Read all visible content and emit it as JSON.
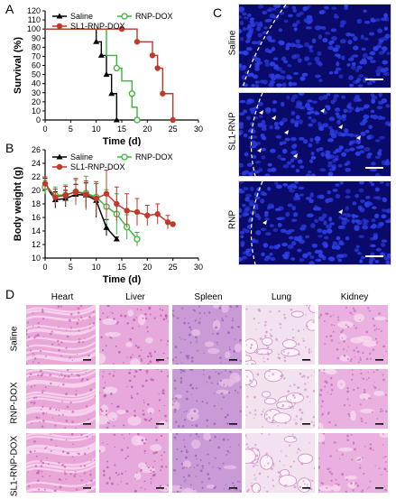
{
  "panels": {
    "A": "A",
    "B": "B",
    "C": "C",
    "D": "D"
  },
  "colors": {
    "saline": "#000000",
    "rnp_dox": "#3cb53c",
    "sl1_rnp_dox": "#c0392b",
    "micro_bg": "#0a0a6a",
    "nuclei": "#2d3fe6"
  },
  "chart_data": [
    {
      "type": "line",
      "id": "survival",
      "xlabel": "Time (d)",
      "ylabel": "Survival (%)",
      "xlim": [
        0,
        30
      ],
      "ylim": [
        0,
        120
      ],
      "xticks": [
        0,
        5,
        10,
        15,
        20,
        25,
        30
      ],
      "yticks": [
        0,
        10,
        20,
        30,
        40,
        50,
        60,
        70,
        80,
        90,
        100,
        110,
        120
      ],
      "legend": [
        {
          "name": "Saline",
          "marker": "triangle",
          "color": "#000000"
        },
        {
          "name": "RNP-DOX",
          "marker": "open-circle",
          "color": "#3cb53c"
        },
        {
          "name": "SL1-RNP-DOX",
          "marker": "circle",
          "color": "#c0392b"
        }
      ],
      "series": [
        {
          "name": "Saline",
          "steps": [
            [
              0,
              100
            ],
            [
              10,
              100
            ],
            [
              10,
              86
            ],
            [
              11,
              86
            ],
            [
              11,
              71
            ],
            [
              12,
              71
            ],
            [
              12,
              50
            ],
            [
              13,
              50
            ],
            [
              13,
              29
            ],
            [
              14,
              29
            ],
            [
              14,
              0
            ]
          ]
        },
        {
          "name": "RNP-DOX",
          "steps": [
            [
              0,
              100
            ],
            [
              12,
              100
            ],
            [
              12,
              71
            ],
            [
              14,
              71
            ],
            [
              14,
              57
            ],
            [
              15,
              57
            ],
            [
              15,
              43
            ],
            [
              17,
              43
            ],
            [
              17,
              29
            ],
            [
              17,
              29
            ],
            [
              17,
              14
            ],
            [
              18,
              14
            ],
            [
              18,
              0
            ]
          ]
        },
        {
          "name": "SL1-RNP-DOX",
          "steps": [
            [
              0,
              100
            ],
            [
              15,
              100
            ],
            [
              15,
              100
            ],
            [
              18,
              100
            ],
            [
              18,
              86
            ],
            [
              21,
              86
            ],
            [
              21,
              71
            ],
            [
              22,
              71
            ],
            [
              22,
              57
            ],
            [
              23,
              57
            ],
            [
              23,
              29
            ],
            [
              25,
              29
            ],
            [
              25,
              0
            ]
          ]
        }
      ],
      "markers": [
        {
          "series": "Saline",
          "points": [
            [
              10,
              86
            ],
            [
              11,
              71
            ],
            [
              12,
              50
            ],
            [
              13,
              29
            ],
            [
              14,
              0
            ]
          ]
        },
        {
          "series": "RNP-DOX",
          "points": [
            [
              14,
              57
            ],
            [
              17,
              29
            ],
            [
              18,
              0
            ]
          ]
        },
        {
          "series": "SL1-RNP-DOX",
          "points": [
            [
              15,
              100
            ],
            [
              18,
              86
            ],
            [
              21,
              71
            ],
            [
              22,
              57
            ],
            [
              23,
              29
            ],
            [
              25,
              0
            ]
          ]
        }
      ]
    },
    {
      "type": "line",
      "id": "body_weight",
      "xlabel": "Time (d)",
      "ylabel": "Body weight (g)",
      "xlim": [
        0,
        30
      ],
      "ylim": [
        10,
        26
      ],
      "xticks": [
        0,
        5,
        10,
        15,
        20,
        25,
        30
      ],
      "yticks": [
        10,
        12,
        14,
        16,
        18,
        20,
        22,
        24,
        26
      ],
      "legend": [
        {
          "name": "Saline",
          "marker": "triangle",
          "color": "#000000"
        },
        {
          "name": "RNP-DOX",
          "marker": "open-circle",
          "color": "#3cb53c"
        },
        {
          "name": "SL1-RNP-DOX",
          "marker": "circle",
          "color": "#c0392b"
        }
      ],
      "series": [
        {
          "name": "Saline",
          "x": [
            0,
            2,
            4,
            6,
            8,
            10,
            12,
            14
          ],
          "y": [
            20.8,
            18.6,
            18.8,
            19.4,
            19.3,
            18.5,
            14.5,
            12.8
          ],
          "err": [
            1.0,
            1.2,
            1.2,
            1.5,
            1.8,
            2.5,
            1.2,
            0.3
          ]
        },
        {
          "name": "RNP-DOX",
          "x": [
            0,
            2,
            4,
            6,
            8,
            10,
            12,
            14,
            16,
            18
          ],
          "y": [
            20.5,
            19.3,
            19.3,
            19.8,
            19.6,
            19.0,
            17.6,
            16.5,
            14.6,
            12.8
          ],
          "err": [
            1.0,
            1.2,
            1.5,
            2.0,
            2.5,
            2.0,
            2.5,
            3.0,
            1.8,
            1.0
          ]
        },
        {
          "name": "SL1-RNP-DOX",
          "x": [
            0,
            2,
            4,
            6,
            8,
            10,
            12,
            14,
            16,
            18,
            20,
            22,
            24,
            25
          ],
          "y": [
            21.0,
            19.0,
            19.3,
            19.8,
            19.4,
            18.8,
            19.5,
            18.0,
            17.0,
            16.8,
            16.3,
            16.5,
            15.3,
            15.0
          ],
          "err": [
            1.0,
            1.2,
            1.3,
            1.8,
            2.0,
            2.5,
            3.5,
            2.5,
            2.5,
            2.0,
            1.5,
            1.5,
            1.0,
            0.2
          ]
        }
      ]
    }
  ],
  "panel_c": {
    "rows": [
      {
        "label": "Saline"
      },
      {
        "label": "SL1-RNP"
      },
      {
        "label": "RNP"
      }
    ]
  },
  "panel_d": {
    "columns": [
      "Heart",
      "Liver",
      "Spleen",
      "Lung",
      "Kidney"
    ],
    "rows": [
      "Saline",
      "RNP-DOX",
      "SL1-RNP-DOX"
    ]
  }
}
